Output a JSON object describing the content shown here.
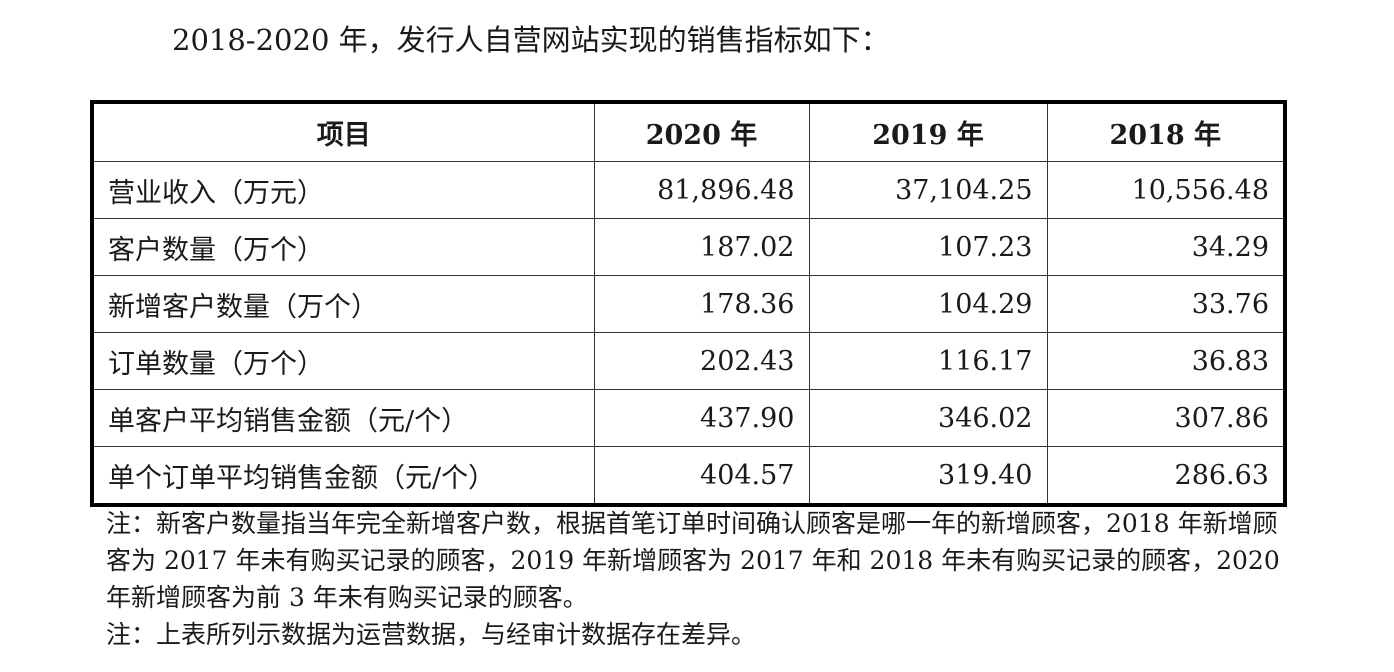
{
  "intro": "2018-2020 年，发行人自营网站实现的销售指标如下：",
  "table": {
    "headers": [
      "项目",
      "2020 年",
      "2019 年",
      "2018 年"
    ],
    "rows": [
      {
        "label": "营业收入（万元）",
        "values": [
          "81,896.48",
          "37,104.25",
          "10,556.48"
        ]
      },
      {
        "label": "客户数量（万个）",
        "values": [
          "187.02",
          "107.23",
          "34.29"
        ]
      },
      {
        "label": "新增客户数量（万个）",
        "values": [
          "178.36",
          "104.29",
          "33.76"
        ]
      },
      {
        "label": "订单数量（万个）",
        "values": [
          "202.43",
          "116.17",
          "36.83"
        ]
      },
      {
        "label": "单客户平均销售金额（元/个）",
        "values": [
          "437.90",
          "346.02",
          "307.86"
        ]
      },
      {
        "label": "单个订单平均销售金额（元/个）",
        "values": [
          "404.57",
          "319.40",
          "286.63"
        ]
      }
    ]
  },
  "notes": [
    "注：新客户数量指当年完全新增客户数，根据首笔订单时间确认顾客是哪一年的新增顾客，2018 年新增顾客为 2017 年未有购买记录的顾客，2019 年新增顾客为 2017 年和 2018 年未有购买记录的顾客，2020 年新增顾客为前 3 年未有购买记录的顾客。",
    "注：上表所列示数据为运营数据，与经审计数据存在差异。"
  ]
}
